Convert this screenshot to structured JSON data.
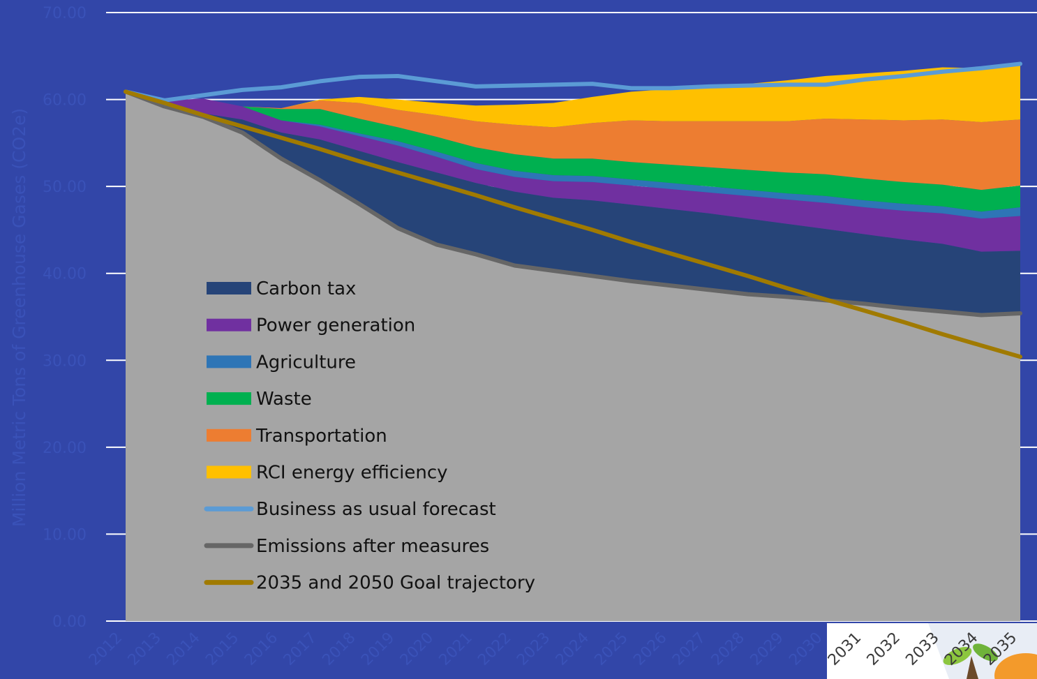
{
  "chart_data": {
    "type": "area",
    "title": "",
    "xlabel": "",
    "ylabel": "Million Metric Tons of Greenhouse Gases (CO2e)",
    "ylim": [
      0,
      70
    ],
    "yticks": [
      "0.00",
      "10.00",
      "20.00",
      "30.00",
      "40.00",
      "50.00",
      "60.00",
      "70.00"
    ],
    "grid": true,
    "legend_position": "inside-left",
    "categories": [
      "2012",
      "2013",
      "2014",
      "2015",
      "2016",
      "2017",
      "2018",
      "2019",
      "2020",
      "2021",
      "2022",
      "2023",
      "2024",
      "2025",
      "2026",
      "2027",
      "2028",
      "2029",
      "2030",
      "2031",
      "2032",
      "2033",
      "2034",
      "2035"
    ],
    "emissions_after_measures": [
      60.9,
      59.2,
      58.0,
      56.2,
      53.2,
      50.7,
      48.0,
      45.2,
      43.3,
      42.2,
      40.9,
      40.3,
      39.7,
      39.1,
      38.6,
      38.1,
      37.6,
      37.3,
      36.9,
      36.5,
      36.0,
      35.6,
      35.2,
      35.4
    ],
    "stack_order_bottom_to_top": [
      "Carbon tax",
      "Power generation",
      "Agriculture",
      "Waste",
      "Transportation",
      "RCI energy efficiency"
    ],
    "series": [
      {
        "name": "Carbon tax",
        "color": "#264478",
        "values": [
          0,
          0.4,
          0.4,
          1.5,
          3.0,
          4.7,
          6.1,
          7.6,
          8.3,
          8.2,
          8.5,
          8.4,
          8.7,
          8.8,
          8.8,
          8.8,
          8.7,
          8.4,
          8.2,
          8.0,
          7.9,
          7.8,
          7.3,
          7.2
        ]
      },
      {
        "name": "Power generation",
        "color": "#7030a0",
        "values": [
          0,
          0.3,
          1.7,
          1.5,
          1.4,
          1.5,
          1.7,
          1.9,
          1.8,
          1.6,
          1.7,
          1.9,
          2.1,
          2.2,
          2.3,
          2.4,
          2.6,
          2.8,
          3.0,
          3.1,
          3.3,
          3.5,
          3.8,
          4.0
        ]
      },
      {
        "name": "Agriculture",
        "color": "#2e75b6",
        "values": [
          0,
          0,
          0,
          0,
          0,
          0.2,
          0.3,
          0.5,
          0.6,
          0.7,
          0.7,
          0.7,
          0.7,
          0.7,
          0.7,
          0.7,
          0.7,
          0.7,
          0.8,
          0.8,
          0.8,
          0.8,
          0.8,
          1.0
        ]
      },
      {
        "name": "Waste",
        "color": "#00b050",
        "values": [
          0,
          0,
          0,
          0,
          1.3,
          1.8,
          1.7,
          1.6,
          1.7,
          1.8,
          1.9,
          1.9,
          2.0,
          2.0,
          2.1,
          2.2,
          2.3,
          2.4,
          2.5,
          2.5,
          2.5,
          2.5,
          2.5,
          2.5
        ]
      },
      {
        "name": "Transportation",
        "color": "#ed7d31",
        "values": [
          0,
          0,
          0,
          0,
          0.1,
          1.0,
          1.8,
          2.0,
          2.5,
          3.0,
          3.4,
          3.6,
          4.1,
          4.8,
          5.0,
          5.3,
          5.6,
          5.9,
          6.4,
          6.8,
          7.1,
          7.5,
          7.8,
          7.6
        ]
      },
      {
        "name": "RCI energy efficiency",
        "color": "#ffc000",
        "values": [
          0,
          0,
          0,
          0,
          0,
          0.1,
          0.7,
          1.2,
          1.4,
          1.8,
          2.3,
          2.8,
          3.0,
          3.3,
          3.7,
          4.0,
          4.3,
          4.7,
          4.9,
          5.3,
          5.7,
          6.0,
          6.2,
          6.3
        ]
      }
    ],
    "lines": [
      {
        "name": "Business as usual forecast",
        "color": "#5b9bd5",
        "values": [
          60.9,
          59.9,
          60.5,
          61.1,
          61.4,
          62.1,
          62.6,
          62.7,
          62.1,
          61.5,
          61.6,
          61.7,
          61.8,
          61.3,
          61.3,
          61.5,
          61.6,
          61.7,
          61.7,
          62.3,
          62.7,
          63.2,
          63.6,
          64.1
        ]
      },
      {
        "name": "Emissions after measures",
        "color": "#666666",
        "values": [
          60.9,
          59.2,
          58.0,
          56.2,
          53.2,
          50.7,
          48.0,
          45.2,
          43.3,
          42.2,
          40.9,
          40.3,
          39.7,
          39.1,
          38.6,
          38.1,
          37.6,
          37.3,
          36.9,
          36.5,
          36.0,
          35.6,
          35.2,
          35.4
        ]
      },
      {
        "name": "2035 and 2050 Goal trajectory",
        "color": "#a07a00",
        "values": [
          60.9,
          59.6,
          58.2,
          56.9,
          55.6,
          54.3,
          52.9,
          51.6,
          50.3,
          49.0,
          47.6,
          46.3,
          45.0,
          43.6,
          42.3,
          41.0,
          39.7,
          38.3,
          37.0,
          35.7,
          34.4,
          33.0,
          31.7,
          30.4
        ]
      }
    ],
    "legend": [
      "Carbon tax",
      "Power generation",
      "Agriculture",
      "Waste",
      "Transportation",
      "RCI energy efficiency",
      "Business as usual forecast",
      "Emissions after measures",
      "2035 and 2050 Goal trajectory"
    ],
    "base_area_color": "#a5a5a5",
    "logo_present": true
  }
}
